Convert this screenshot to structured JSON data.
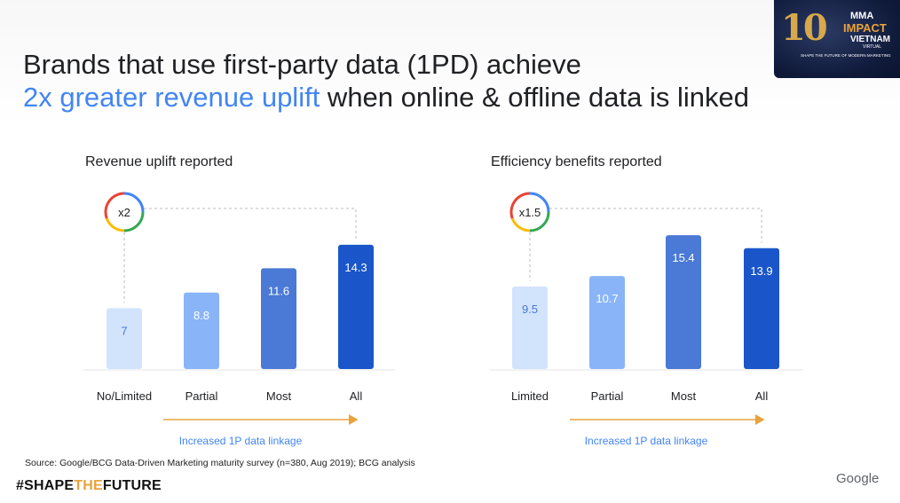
{
  "title": {
    "line1": "Brands that use first-party data (1PD) achieve",
    "highlight": "2x greater revenue uplift",
    "rest": " when online & offline data is linked"
  },
  "logo": {
    "number": "10",
    "brand": "MMA",
    "event": "IMPACT",
    "country": "VIETNAM",
    "format": "VIRTUAL",
    "tagline": "SHAPE THE FUTURE OF MODERN MARKETING"
  },
  "chart_data": [
    {
      "type": "bar",
      "title": "Revenue uplift reported",
      "categories": [
        "No/Limited",
        "Partial",
        "Most",
        "All"
      ],
      "values": [
        7,
        8.8,
        11.6,
        14.3
      ],
      "colors": [
        "#d2e3fc",
        "#8ab4f8",
        "#4a79d6",
        "#1a56c9"
      ],
      "label_colors": [
        "#4a79d6",
        "#ffffff",
        "#ffffff",
        "#ffffff"
      ],
      "multiplier": "x2",
      "arrow_label": "Increased 1P data linkage"
    },
    {
      "type": "bar",
      "title": "Efficiency benefits reported",
      "categories": [
        "Limited",
        "Partial",
        "Most",
        "All"
      ],
      "values": [
        9.5,
        10.7,
        15.4,
        13.9
      ],
      "colors": [
        "#d2e3fc",
        "#8ab4f8",
        "#4a79d6",
        "#1a56c9"
      ],
      "label_colors": [
        "#4a79d6",
        "#ffffff",
        "#ffffff",
        "#ffffff"
      ],
      "multiplier": "x1.5",
      "arrow_label": "Increased 1P data linkage"
    }
  ],
  "source": "Source: Google/BCG Data-Driven Marketing maturity survey (n=380, Aug 2019); BCG analysis",
  "hashtag": {
    "a": "#SHAPE",
    "b": "THE",
    "c": "FUTURE"
  },
  "google": "Google",
  "palette": {
    "accent": "#4285f4",
    "arrow": "#e8a33c"
  }
}
